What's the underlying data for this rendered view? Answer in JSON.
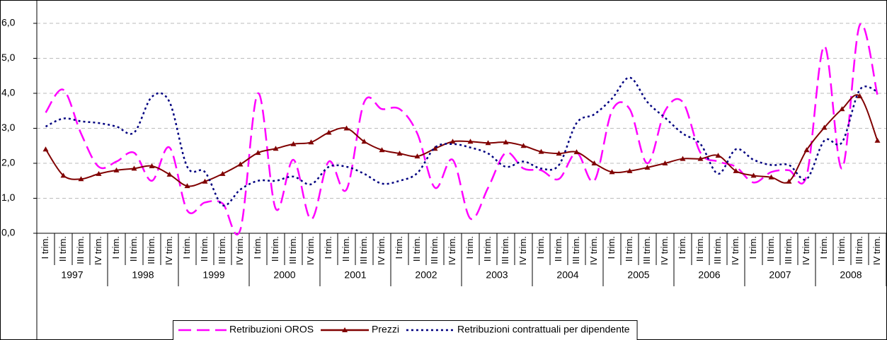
{
  "chart_data": {
    "type": "line",
    "categories": [
      "I trim.",
      "II trim.",
      "III trim.",
      "IV trim.",
      "I trim.",
      "II trim.",
      "III trim.",
      "IV trim.",
      "I trim.",
      "II trim.",
      "III trim.",
      "IV trim.",
      "I trim.",
      "II trim.",
      "III trim.",
      "IV trim.",
      "I trim.",
      "II trim.",
      "III trim.",
      "IV trim.",
      "I trim.",
      "II trim.",
      "III trim.",
      "IV trim.",
      "I trim.",
      "II trim.",
      "III trim.",
      "IV trim.",
      "I trim.",
      "II trim.",
      "III trim.",
      "IV trim.",
      "I trim.",
      "II trim.",
      "III trim.",
      "IV trim.",
      "I trim.",
      "II trim.",
      "III trim.",
      "IV trim.",
      "I trim.",
      "II trim.",
      "III trim.",
      "IV trim.",
      "I trim.",
      "II trim.",
      "III trim.",
      "IV trim."
    ],
    "category_groups": [
      "1997",
      "1998",
      "1999",
      "2000",
      "2001",
      "2002",
      "2003",
      "2004",
      "2005",
      "2006",
      "2007",
      "2008"
    ],
    "series": [
      {
        "name": "Retribuzioni OROS",
        "color": "#ff00ff",
        "dash": "dashed",
        "values": [
          3.45,
          4.1,
          2.85,
          1.9,
          2.05,
          2.3,
          1.5,
          2.45,
          0.65,
          0.88,
          0.85,
          0.1,
          4.0,
          0.7,
          2.1,
          0.4,
          2.05,
          1.25,
          3.75,
          3.55,
          3.55,
          2.85,
          1.3,
          2.1,
          0.42,
          1.3,
          2.3,
          1.85,
          1.8,
          1.55,
          2.3,
          1.5,
          3.5,
          3.55,
          2.0,
          3.5,
          3.75,
          2.3,
          2.05,
          1.9,
          1.45,
          1.75,
          1.8,
          1.65,
          5.35,
          1.85,
          5.95,
          3.95
        ]
      },
      {
        "name": "Prezzi",
        "color": "#800000",
        "dash": "solid",
        "marker": "triangle",
        "values": [
          2.4,
          1.65,
          1.55,
          1.7,
          1.8,
          1.85,
          1.92,
          1.68,
          1.35,
          1.48,
          1.7,
          1.97,
          2.3,
          2.42,
          2.55,
          2.6,
          2.88,
          3.0,
          2.62,
          2.38,
          2.28,
          2.2,
          2.42,
          2.62,
          2.62,
          2.58,
          2.6,
          2.5,
          2.33,
          2.28,
          2.32,
          2.0,
          1.75,
          1.78,
          1.88,
          2.0,
          2.13,
          2.13,
          2.22,
          1.78,
          1.65,
          1.6,
          1.48,
          2.38,
          3.02,
          3.55,
          3.92,
          2.65
        ]
      },
      {
        "name": "Retribuzioni contrattuali per dipendente",
        "color": "#000080",
        "dash": "dotted",
        "values": [
          3.05,
          3.28,
          3.2,
          3.15,
          3.05,
          2.88,
          3.9,
          3.75,
          1.9,
          1.75,
          0.8,
          1.25,
          1.5,
          1.5,
          1.62,
          1.4,
          1.9,
          1.9,
          1.7,
          1.42,
          1.5,
          1.72,
          2.45,
          2.55,
          2.45,
          2.28,
          1.9,
          2.05,
          1.85,
          1.95,
          3.15,
          3.4,
          3.85,
          4.45,
          3.75,
          3.3,
          2.85,
          2.55,
          1.7,
          2.4,
          2.1,
          1.95,
          1.95,
          1.55,
          2.65,
          2.6,
          4.1,
          4.05
        ]
      }
    ],
    "ylim": [
      0,
      6
    ],
    "yticks": [
      {
        "value": 0,
        "label": "0,0"
      },
      {
        "value": 1,
        "label": "1,0"
      },
      {
        "value": 2,
        "label": "2,0"
      },
      {
        "value": 3,
        "label": "3,0"
      },
      {
        "value": 4,
        "label": "4,0"
      },
      {
        "value": 5,
        "label": "5,0"
      },
      {
        "value": 6,
        "label": "6,0"
      }
    ],
    "grid": true,
    "legend": "bottom"
  }
}
